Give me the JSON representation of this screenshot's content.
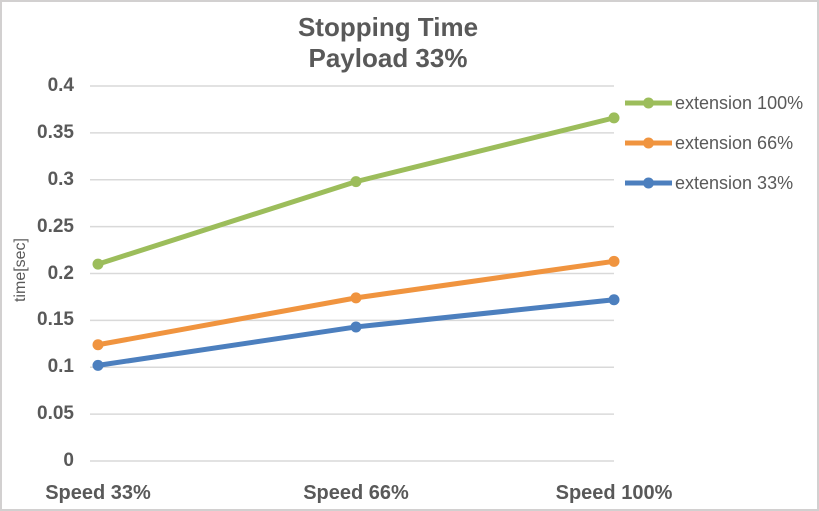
{
  "chart_data": {
    "type": "line",
    "title": "Stopping Time",
    "subtitle": "Payload 33%",
    "ylabel": "time[sec]",
    "xlabel": "",
    "categories": [
      "Speed 33%",
      "Speed 66%",
      "Speed 100%"
    ],
    "series": [
      {
        "name": "extension 100%",
        "color": "#9CBD5B",
        "values": [
          0.21,
          0.298,
          0.366
        ]
      },
      {
        "name": "extension 66%",
        "color": "#F0943F",
        "values": [
          0.124,
          0.174,
          0.213
        ]
      },
      {
        "name": "extension 33%",
        "color": "#4C7FBE",
        "values": [
          0.102,
          0.143,
          0.172
        ]
      }
    ],
    "ylim": [
      0,
      0.4
    ],
    "ytick_step": 0.05,
    "ytick_labels": [
      "0.4",
      "0.35",
      "0.3",
      "0.25",
      "0.2",
      "0.15",
      "0.1",
      "0.05",
      "0"
    ],
    "grid": true,
    "legend_position": "right",
    "colors": {
      "text": "#595959",
      "gridline": "#D9D9D9",
      "background": "#FFFFFF",
      "frame_border": "#D2D0D0"
    }
  }
}
